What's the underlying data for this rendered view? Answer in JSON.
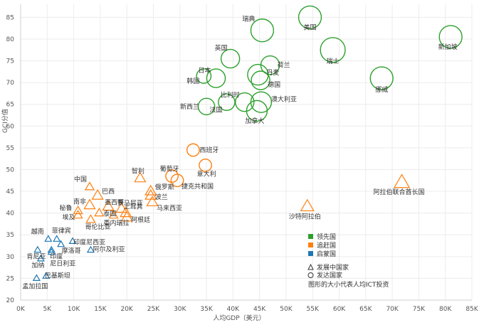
{
  "chart_data": {
    "type": "scatter",
    "xlabel": "人均GDP（美元）",
    "ylabel": "GCI分值",
    "xlim": [
      0,
      85000
    ],
    "ylim": [
      20,
      88
    ],
    "x_ticks": [
      0,
      5000,
      10000,
      15000,
      20000,
      25000,
      30000,
      35000,
      40000,
      45000,
      50000,
      55000,
      60000,
      65000,
      70000,
      75000,
      80000,
      85000
    ],
    "x_tick_labels": [
      "0K",
      "5K",
      "10K",
      "15K",
      "20K",
      "25K",
      "30K",
      "35K",
      "40K",
      "45K",
      "50K",
      "55K",
      "60K",
      "65K",
      "70K",
      "75K",
      "80K",
      "85K"
    ],
    "y_ticks": [
      20,
      25,
      30,
      35,
      40,
      45,
      50,
      55,
      60,
      65,
      70,
      75,
      80,
      85
    ],
    "y_tick_labels": [
      "20",
      "25",
      "30",
      "35",
      "40",
      "45",
      "50",
      "55",
      "60",
      "65",
      "70",
      "75",
      "80",
      "85"
    ],
    "groups": [
      {
        "name": "领先国",
        "color": "#2ca02c"
      },
      {
        "name": "追赶国",
        "color": "#ff7f0e"
      },
      {
        "name": "启蒙国",
        "color": "#1f77b4"
      }
    ],
    "shape_legend": [
      {
        "shape": "triangle",
        "label": "发展中国家"
      },
      {
        "shape": "circle",
        "label": "发达国家"
      }
    ],
    "size_note": "图形的大小代表人均ICT投资",
    "points": [
      {
        "name": "瑞典",
        "x": 45500,
        "y": 82,
        "group": 0,
        "shape": "circle",
        "size": 11
      },
      {
        "name": "美国",
        "x": 54500,
        "y": 85,
        "group": 0,
        "shape": "circle",
        "size": 11
      },
      {
        "name": "新加坡",
        "x": 81000,
        "y": 80.5,
        "group": 0,
        "shape": "circle",
        "size": 11
      },
      {
        "name": "瑞士",
        "x": 58800,
        "y": 77.5,
        "group": 0,
        "shape": "circle",
        "size": 12
      },
      {
        "name": "英国",
        "x": 39500,
        "y": 75.5,
        "group": 0,
        "shape": "circle",
        "size": 9
      },
      {
        "name": "荷兰",
        "x": 47000,
        "y": 74,
        "group": 0,
        "shape": "circle",
        "size": 9
      },
      {
        "name": "日本",
        "x": 36800,
        "y": 71,
        "group": 0,
        "shape": "circle",
        "size": 9
      },
      {
        "name": "韩国",
        "x": 34500,
        "y": 71.5,
        "group": 0,
        "shape": "circle",
        "size": 7
      },
      {
        "name": "丹麦",
        "x": 44700,
        "y": 71.8,
        "group": 0,
        "shape": "circle",
        "size": 10
      },
      {
        "name": "德国",
        "x": 45200,
        "y": 70.5,
        "group": 0,
        "shape": "circle",
        "size": 9
      },
      {
        "name": "挪威",
        "x": 68000,
        "y": 71,
        "group": 0,
        "shape": "circle",
        "size": 11
      },
      {
        "name": "比利时",
        "x": 42200,
        "y": 65.5,
        "group": 0,
        "shape": "circle",
        "size": 9
      },
      {
        "name": "澳大利亚",
        "x": 45300,
        "y": 65.5,
        "group": 0,
        "shape": "circle",
        "size": 10
      },
      {
        "name": "新西兰",
        "x": 35000,
        "y": 64.5,
        "group": 0,
        "shape": "circle",
        "size": 8
      },
      {
        "name": "法国",
        "x": 38800,
        "y": 65.5,
        "group": 0,
        "shape": "circle",
        "size": 8
      },
      {
        "name": "加拿大",
        "x": 44500,
        "y": 63.5,
        "group": 0,
        "shape": "circle",
        "size": 10
      },
      {
        "name": "西班牙",
        "x": 32500,
        "y": 54.5,
        "group": 1,
        "shape": "circle",
        "size": 6
      },
      {
        "name": "葡萄牙",
        "x": 28500,
        "y": 48.5,
        "group": 1,
        "shape": "circle",
        "size": 6
      },
      {
        "name": "意大利",
        "x": 34800,
        "y": 51,
        "group": 1,
        "shape": "circle",
        "size": 6
      },
      {
        "name": "捷克共和国",
        "x": 29500,
        "y": 47.5,
        "group": 1,
        "shape": "circle",
        "size": 6
      },
      {
        "name": "智利",
        "x": 22500,
        "y": 48,
        "group": 1,
        "shape": "triangle",
        "size": 5
      },
      {
        "name": "阿拉伯联合酋长国",
        "x": 71800,
        "y": 47,
        "group": 1,
        "shape": "triangle",
        "size": 7
      },
      {
        "name": "沙特阿拉伯",
        "x": 54000,
        "y": 41.5,
        "group": 1,
        "shape": "triangle",
        "size": 6
      },
      {
        "name": "中国",
        "x": 13000,
        "y": 46,
        "group": 1,
        "shape": "triangle",
        "size": 4
      },
      {
        "name": "巴西",
        "x": 14500,
        "y": 44,
        "group": 1,
        "shape": "triangle",
        "size": 5
      },
      {
        "name": "俄罗斯",
        "x": 24500,
        "y": 45,
        "group": 1,
        "shape": "triangle",
        "size": 5
      },
      {
        "name": "波兰",
        "x": 24500,
        "y": 44,
        "group": 1,
        "shape": "triangle",
        "size": 5
      },
      {
        "name": "马来西亚",
        "x": 24800,
        "y": 42.5,
        "group": 1,
        "shape": "triangle",
        "size": 5
      },
      {
        "name": "南非",
        "x": 13000,
        "y": 41.8,
        "group": 1,
        "shape": "triangle",
        "size": 5
      },
      {
        "name": "墨西哥",
        "x": 16500,
        "y": 41.5,
        "group": 1,
        "shape": "triangle",
        "size": 5
      },
      {
        "name": "罗马尼亚",
        "x": 19000,
        "y": 41,
        "group": 1,
        "shape": "triangle",
        "size": 5
      },
      {
        "name": "土耳其",
        "x": 19800,
        "y": 40,
        "group": 1,
        "shape": "triangle",
        "size": 5
      },
      {
        "name": "阿根廷",
        "x": 20000,
        "y": 39,
        "group": 1,
        "shape": "triangle",
        "size": 5
      },
      {
        "name": "秘鲁",
        "x": 10800,
        "y": 40.5,
        "group": 1,
        "shape": "triangle",
        "size": 4
      },
      {
        "name": "埃及",
        "x": 10800,
        "y": 39.5,
        "group": 1,
        "shape": "triangle",
        "size": 4
      },
      {
        "name": "泰国",
        "x": 14800,
        "y": 40,
        "group": 1,
        "shape": "triangle",
        "size": 4
      },
      {
        "name": "哥伦比亚",
        "x": 13200,
        "y": 38.5,
        "group": 1,
        "shape": "triangle",
        "size": 4
      },
      {
        "name": "委内瑞拉",
        "x": 17500,
        "y": 39.5,
        "group": 1,
        "shape": "triangle",
        "size": 4
      },
      {
        "name": "越南",
        "x": 5200,
        "y": 34,
        "group": 2,
        "shape": "triangle",
        "size": 3
      },
      {
        "name": "菲律宾",
        "x": 6800,
        "y": 34,
        "group": 2,
        "shape": "triangle",
        "size": 3
      },
      {
        "name": "印度尼西亚",
        "x": 9800,
        "y": 33.5,
        "group": 2,
        "shape": "triangle",
        "size": 3
      },
      {
        "name": "摩洛哥",
        "x": 7600,
        "y": 32.8,
        "group": 2,
        "shape": "triangle",
        "size": 3
      },
      {
        "name": "阿尔及利亚",
        "x": 13200,
        "y": 31.5,
        "group": 2,
        "shape": "triangle",
        "size": 3
      },
      {
        "name": "肯尼亚",
        "x": 3200,
        "y": 31.5,
        "group": 2,
        "shape": "triangle",
        "size": 3
      },
      {
        "name": "印度",
        "x": 5800,
        "y": 31.5,
        "group": 2,
        "shape": "triangle",
        "size": 3
      },
      {
        "name": "尼日利亚",
        "x": 5800,
        "y": 31,
        "group": 2,
        "shape": "triangle",
        "size": 3
      },
      {
        "name": "加纳",
        "x": 3800,
        "y": 29.5,
        "group": 2,
        "shape": "triangle",
        "size": 3
      },
      {
        "name": "巴基斯坦",
        "x": 4800,
        "y": 25.5,
        "group": 2,
        "shape": "triangle",
        "size": 3
      },
      {
        "name": "孟加拉国",
        "x": 3000,
        "y": 25,
        "group": 2,
        "shape": "triangle",
        "size": 3
      }
    ]
  }
}
